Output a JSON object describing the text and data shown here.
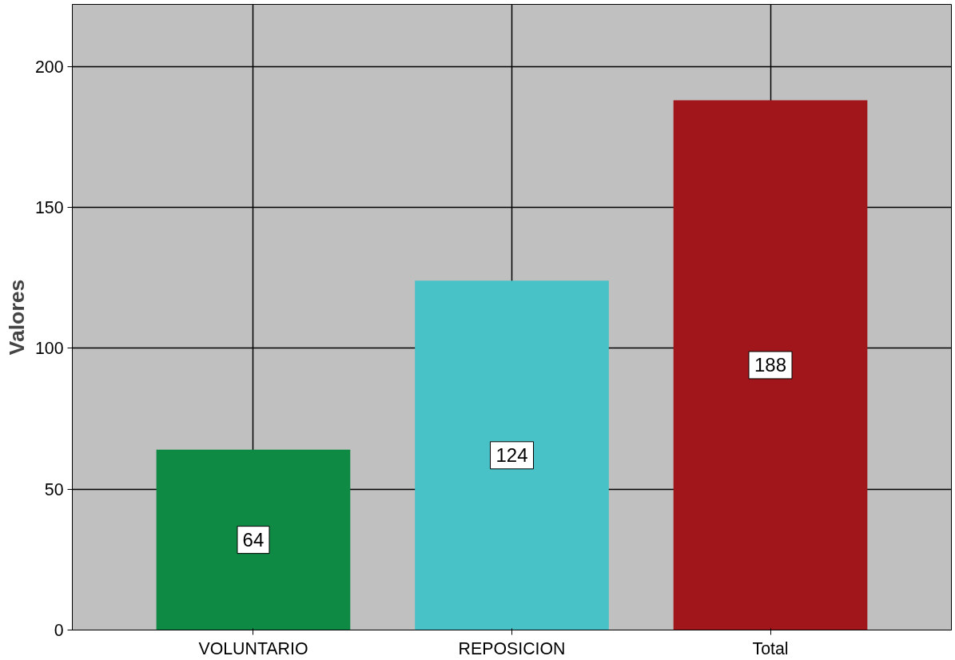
{
  "chart_data": {
    "type": "bar",
    "ylabel": "Valores",
    "categories": [
      "VOLUNTARIO",
      "REPOSICION",
      "Total"
    ],
    "values": [
      64,
      124,
      188
    ],
    "colors": [
      "#0f8a45",
      "#48c2c6",
      "#a0161a"
    ],
    "ylim": [
      0,
      222
    ],
    "yticks": [
      0,
      50,
      100,
      150,
      200
    ],
    "grid": true,
    "data_labels": true
  }
}
